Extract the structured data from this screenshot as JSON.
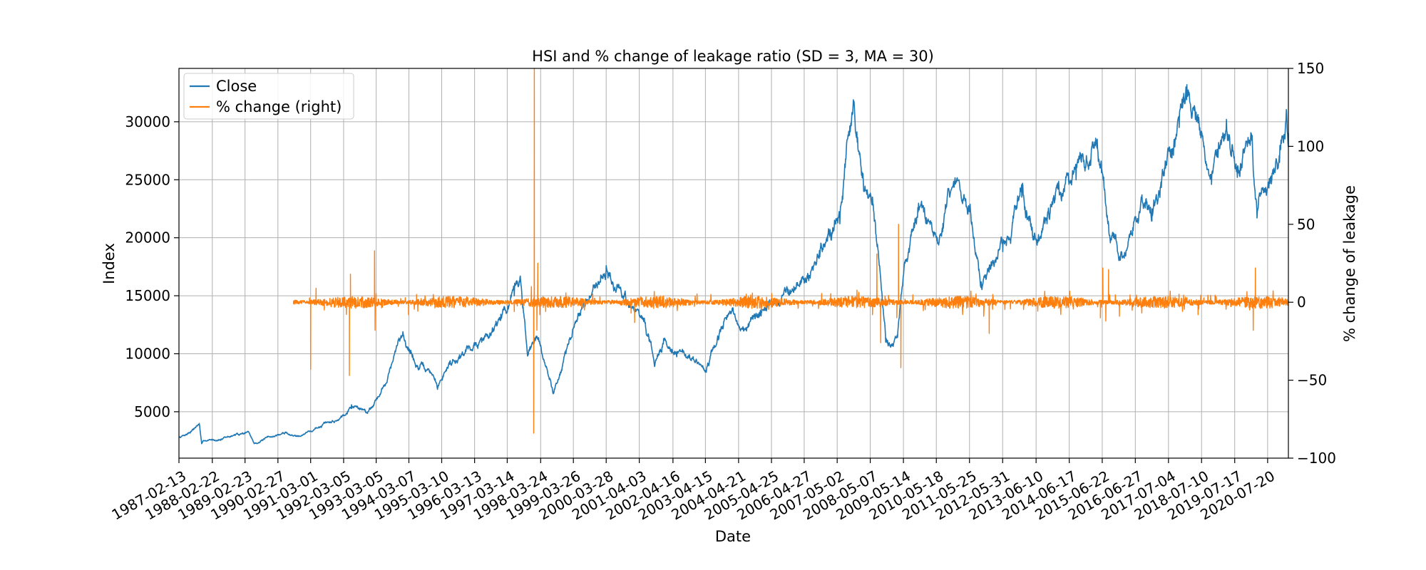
{
  "chart_data": {
    "type": "line",
    "title": "HSI and % change of leakage ratio (SD = 3, MA = 30)",
    "xlabel": "Date",
    "ylabel": "Index",
    "y2label": "% change of leakage",
    "x_ticks": [
      "1987-02-13",
      "1988-02-22",
      "1989-02-23",
      "1990-02-27",
      "1991-03-01",
      "1992-03-05",
      "1993-03-05",
      "1994-03-07",
      "1995-03-10",
      "1996-03-13",
      "1997-03-14",
      "1998-03-24",
      "1999-03-26",
      "2000-03-28",
      "2001-04-03",
      "2002-04-16",
      "2003-04-15",
      "2004-04-21",
      "2005-04-25",
      "2006-04-27",
      "2007-05-02",
      "2008-05-07",
      "2009-05-14",
      "2010-05-18",
      "2011-05-25",
      "2012-05-31",
      "2013-06-10",
      "2014-06-17",
      "2015-06-22",
      "2016-06-27",
      "2017-07-04",
      "2018-07-10",
      "2019-07-17",
      "2020-07-20"
    ],
    "xlim": [
      "1987-02-13",
      "2021-03-10"
    ],
    "ylim": [
      1000,
      34600
    ],
    "y_ticks": [
      5000,
      10000,
      15000,
      20000,
      25000,
      30000
    ],
    "y2lim": [
      -100,
      150
    ],
    "y2_ticks": [
      -100,
      -50,
      0,
      50,
      100,
      150
    ],
    "y2_tick_labels": [
      "−100",
      "−50",
      "0",
      "50",
      "100",
      "150"
    ],
    "grid": true,
    "legend_position": "top-left",
    "series": [
      {
        "name": "Close",
        "axis": "left",
        "color": "#1f77b4",
        "x": [
          "1987-02-13",
          "1987-06-01",
          "1987-09-30",
          "1987-10-26",
          "1987-12-01",
          "1988-06-01",
          "1989-04-01",
          "1989-06-05",
          "1989-12-01",
          "1990-06-01",
          "1990-08-20",
          "1991-03-01",
          "1991-06-01",
          "1992-01-01",
          "1992-06-01",
          "1992-12-01",
          "1993-06-01",
          "1993-12-30",
          "1994-03-01",
          "1994-06-01",
          "1994-12-01",
          "1995-01-23",
          "1995-06-01",
          "1996-01-01",
          "1996-06-01",
          "1997-01-01",
          "1997-06-01",
          "1997-08-07",
          "1997-10-28",
          "1998-02-01",
          "1998-08-13",
          "1999-01-01",
          "1999-06-01",
          "2000-03-28",
          "2000-06-01",
          "2000-12-01",
          "2001-06-01",
          "2001-09-21",
          "2002-01-01",
          "2002-06-01",
          "2002-12-01",
          "2003-04-25",
          "2003-10-01",
          "2004-01-01",
          "2004-06-01",
          "2005-01-01",
          "2005-06-01",
          "2006-01-01",
          "2006-06-01",
          "2007-01-01",
          "2007-06-01",
          "2007-10-30",
          "2008-03-01",
          "2008-06-01",
          "2008-10-27",
          "2009-03-09",
          "2009-06-01",
          "2009-11-01",
          "2010-06-01",
          "2010-11-08",
          "2011-06-01",
          "2011-10-04",
          "2012-06-01",
          "2013-01-01",
          "2013-06-25",
          "2014-01-01",
          "2014-09-01",
          "2015-04-27",
          "2015-08-24",
          "2016-02-12",
          "2016-09-01",
          "2017-01-01",
          "2017-06-01",
          "2017-11-01",
          "2018-01-26",
          "2018-06-01",
          "2018-10-30",
          "2019-04-15",
          "2019-08-15",
          "2020-01-17",
          "2020-03-23",
          "2020-06-01",
          "2020-12-01",
          "2021-02-17",
          "2021-03-10"
        ],
        "y": [
          2800,
          3200,
          3950,
          2240,
          2500,
          2650,
          3300,
          2250,
          2800,
          3200,
          2900,
          3300,
          3700,
          4300,
          5600,
          5000,
          7200,
          11900,
          10500,
          9000,
          8200,
          7000,
          9200,
          10500,
          11000,
          13400,
          15000,
          16700,
          9800,
          11500,
          6700,
          10000,
          13500,
          17600,
          16000,
          14500,
          12800,
          8900,
          11300,
          10200,
          9500,
          8400,
          11900,
          13500,
          12200,
          13500,
          14300,
          15800,
          16500,
          19900,
          21200,
          31900,
          24000,
          23500,
          11000,
          11400,
          17800,
          22800,
          19500,
          24300,
          22900,
          16200,
          18800,
          23500,
          19800,
          23000,
          25000,
          28500,
          21200,
          18400,
          23500,
          22500,
          26000,
          29500,
          33200,
          29900,
          24600,
          30200,
          25200,
          29000,
          21700,
          24300,
          26500,
          30900,
          29000
        ]
      },
      {
        "name": "% change (right)",
        "axis": "right",
        "color": "#ff7f0e",
        "x": [
          "1990-08-20",
          "1991-02-25",
          "1991-03-01",
          "1991-05-01",
          "1991-08-01",
          "1992-05-01",
          "1992-05-08",
          "1992-05-20",
          "1993-01-01",
          "1993-02-15",
          "1993-02-20",
          "1993-05-01",
          "1994-03-03",
          "1994-06-01",
          "1997-06-01",
          "1997-12-10",
          "1998-01-05",
          "1998-01-12",
          "1998-02-10",
          "1998-02-20",
          "1998-03-15",
          "1999-01-01",
          "2001-01-01",
          "2001-02-10",
          "2002-01-01",
          "2005-01-01",
          "2008-06-01",
          "2008-07-20",
          "2008-09-01",
          "2009-03-01",
          "2009-03-20",
          "2009-04-15",
          "2009-06-01",
          "2011-11-01",
          "2012-01-01",
          "2012-02-10",
          "2015-06-01",
          "2015-06-28",
          "2015-08-01",
          "2015-09-01",
          "2016-01-01",
          "2018-06-01",
          "2020-01-01",
          "2020-02-10",
          "2020-03-05",
          "2020-05-01",
          "2021-03-10"
        ],
        "y": [
          0,
          1,
          -43,
          9,
          -5,
          2,
          -47,
          18,
          2,
          33,
          -18,
          2,
          -8,
          5,
          -6,
          10,
          -84,
          150,
          -18,
          25,
          -8,
          6,
          -7,
          -13,
          4,
          -5,
          -8,
          31,
          -26,
          -10,
          50,
          -42,
          2,
          -9,
          -20,
          5,
          -10,
          22,
          -12,
          21,
          -9,
          -8,
          -5,
          -18,
          22,
          -4,
          1
        ]
      }
    ]
  }
}
